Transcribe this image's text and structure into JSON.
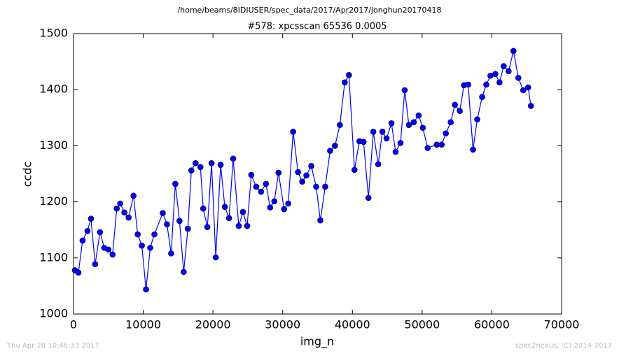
{
  "chart_data": {
    "type": "line",
    "title": "/home/beams/8IDIUSER/spec_data/2017/Apr2017/jonghun20170418",
    "subtitle": "#578: xpcsscan 65536 0.0005",
    "xlabel": "img_n",
    "ylabel": "ccdc",
    "footer_left": "Thu Apr 20 10:46:33 2017",
    "footer_right": "spec2nexus, (C) 2014-2017",
    "color": "#0000ff",
    "marker": "o",
    "grid": false,
    "xlim": [
      0,
      70000
    ],
    "ylim": [
      1000,
      1500
    ],
    "xticks": [
      0,
      10000,
      20000,
      30000,
      40000,
      50000,
      60000,
      70000
    ],
    "yticks": [
      1000,
      1100,
      1200,
      1300,
      1400,
      1500
    ],
    "x": [
      200,
      700,
      1300,
      2000,
      2500,
      3100,
      3800,
      4400,
      5000,
      5600,
      6200,
      6700,
      7300,
      7900,
      8600,
      9200,
      9800,
      10400,
      11000,
      11600,
      12800,
      13400,
      14000,
      14600,
      15200,
      15800,
      16400,
      16900,
      17500,
      18200,
      18600,
      19200,
      19800,
      20400,
      21100,
      21700,
      22300,
      22900,
      23700,
      24300,
      24900,
      25500,
      26200,
      26900,
      27600,
      28200,
      28800,
      29400,
      30200,
      30800,
      31500,
      32200,
      32800,
      33400,
      34100,
      34800,
      35400,
      36100,
      36800,
      37500,
      38200,
      38900,
      39500,
      40300,
      41000,
      41600,
      42300,
      43000,
      43700,
      44300,
      44900,
      45600,
      46200,
      46900,
      47500,
      48100,
      48800,
      49500,
      50100,
      50800,
      52100,
      52800,
      53400,
      54100,
      54700,
      55400,
      56000,
      56600,
      57300,
      57900,
      58600,
      59200,
      59800,
      60500,
      61100,
      61700,
      62400,
      63100,
      63800,
      64500,
      65200,
      65600
    ],
    "values": [
      1078,
      1074,
      1131,
      1148,
      1170,
      1089,
      1146,
      1118,
      1115,
      1106,
      1188,
      1197,
      1181,
      1172,
      1211,
      1142,
      1122,
      1044,
      1118,
      1142,
      1180,
      1160,
      1108,
      1232,
      1166,
      1075,
      1152,
      1256,
      1269,
      1262,
      1188,
      1155,
      1269,
      1101,
      1266,
      1191,
      1171,
      1277,
      1157,
      1182,
      1157,
      1248,
      1227,
      1218,
      1232,
      1190,
      1201,
      1252,
      1187,
      1197,
      1325,
      1253,
      1236,
      1247,
      1264,
      1227,
      1167,
      1227,
      1291,
      1300,
      1337,
      1413,
      1426,
      1257,
      1308,
      1307,
      1207,
      1325,
      1267,
      1325,
      1313,
      1340,
      1289,
      1305,
      1399,
      1337,
      1342,
      1354,
      1332,
      1296,
      1302,
      1302,
      1322,
      1342,
      1373,
      1362,
      1408,
      1409,
      1293,
      1347,
      1387,
      1409,
      1425,
      1428,
      1413,
      1442,
      1433,
      1469,
      1421,
      1399,
      1404,
      1371
    ]
  }
}
